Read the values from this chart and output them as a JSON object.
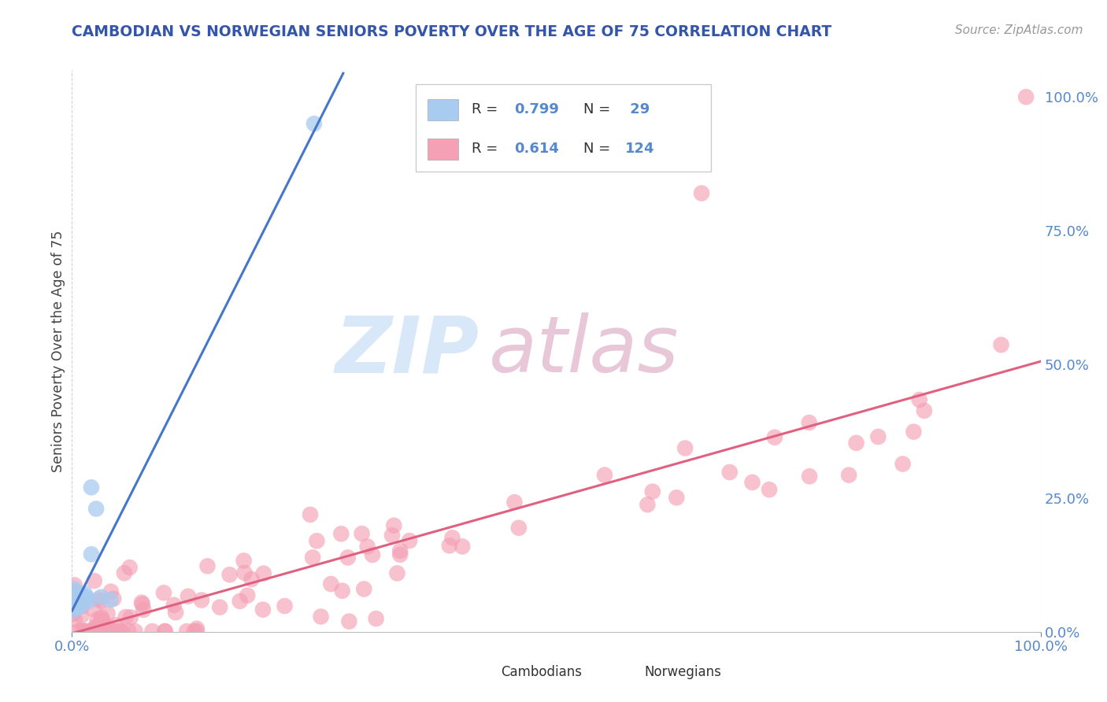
{
  "title": "CAMBODIAN VS NORWEGIAN SENIORS POVERTY OVER THE AGE OF 75 CORRELATION CHART",
  "source": "Source: ZipAtlas.com",
  "ylabel": "Seniors Poverty Over the Age of 75",
  "right_yticks": [
    0.0,
    0.25,
    0.5,
    0.75,
    1.0
  ],
  "right_yticklabels": [
    "0.0%",
    "25.0%",
    "50.0%",
    "75.0%",
    "100.0%"
  ],
  "legend_cambodian": {
    "R": 0.799,
    "N": 29
  },
  "legend_norwegian": {
    "R": 0.614,
    "N": 124
  },
  "cambodian_color": "#A8CBF0",
  "norwegian_color": "#F4A0B5",
  "trendline_cambodian_color": "#4477CC",
  "trendline_norwegian_color": "#E06080",
  "background_color": "#FFFFFF",
  "grid_color": "#CCCCCC",
  "watermark_color": "#D8E8F8",
  "title_color": "#3355AA",
  "source_color": "#999999",
  "axis_color": "#5588CC",
  "ylabel_color": "#444444"
}
